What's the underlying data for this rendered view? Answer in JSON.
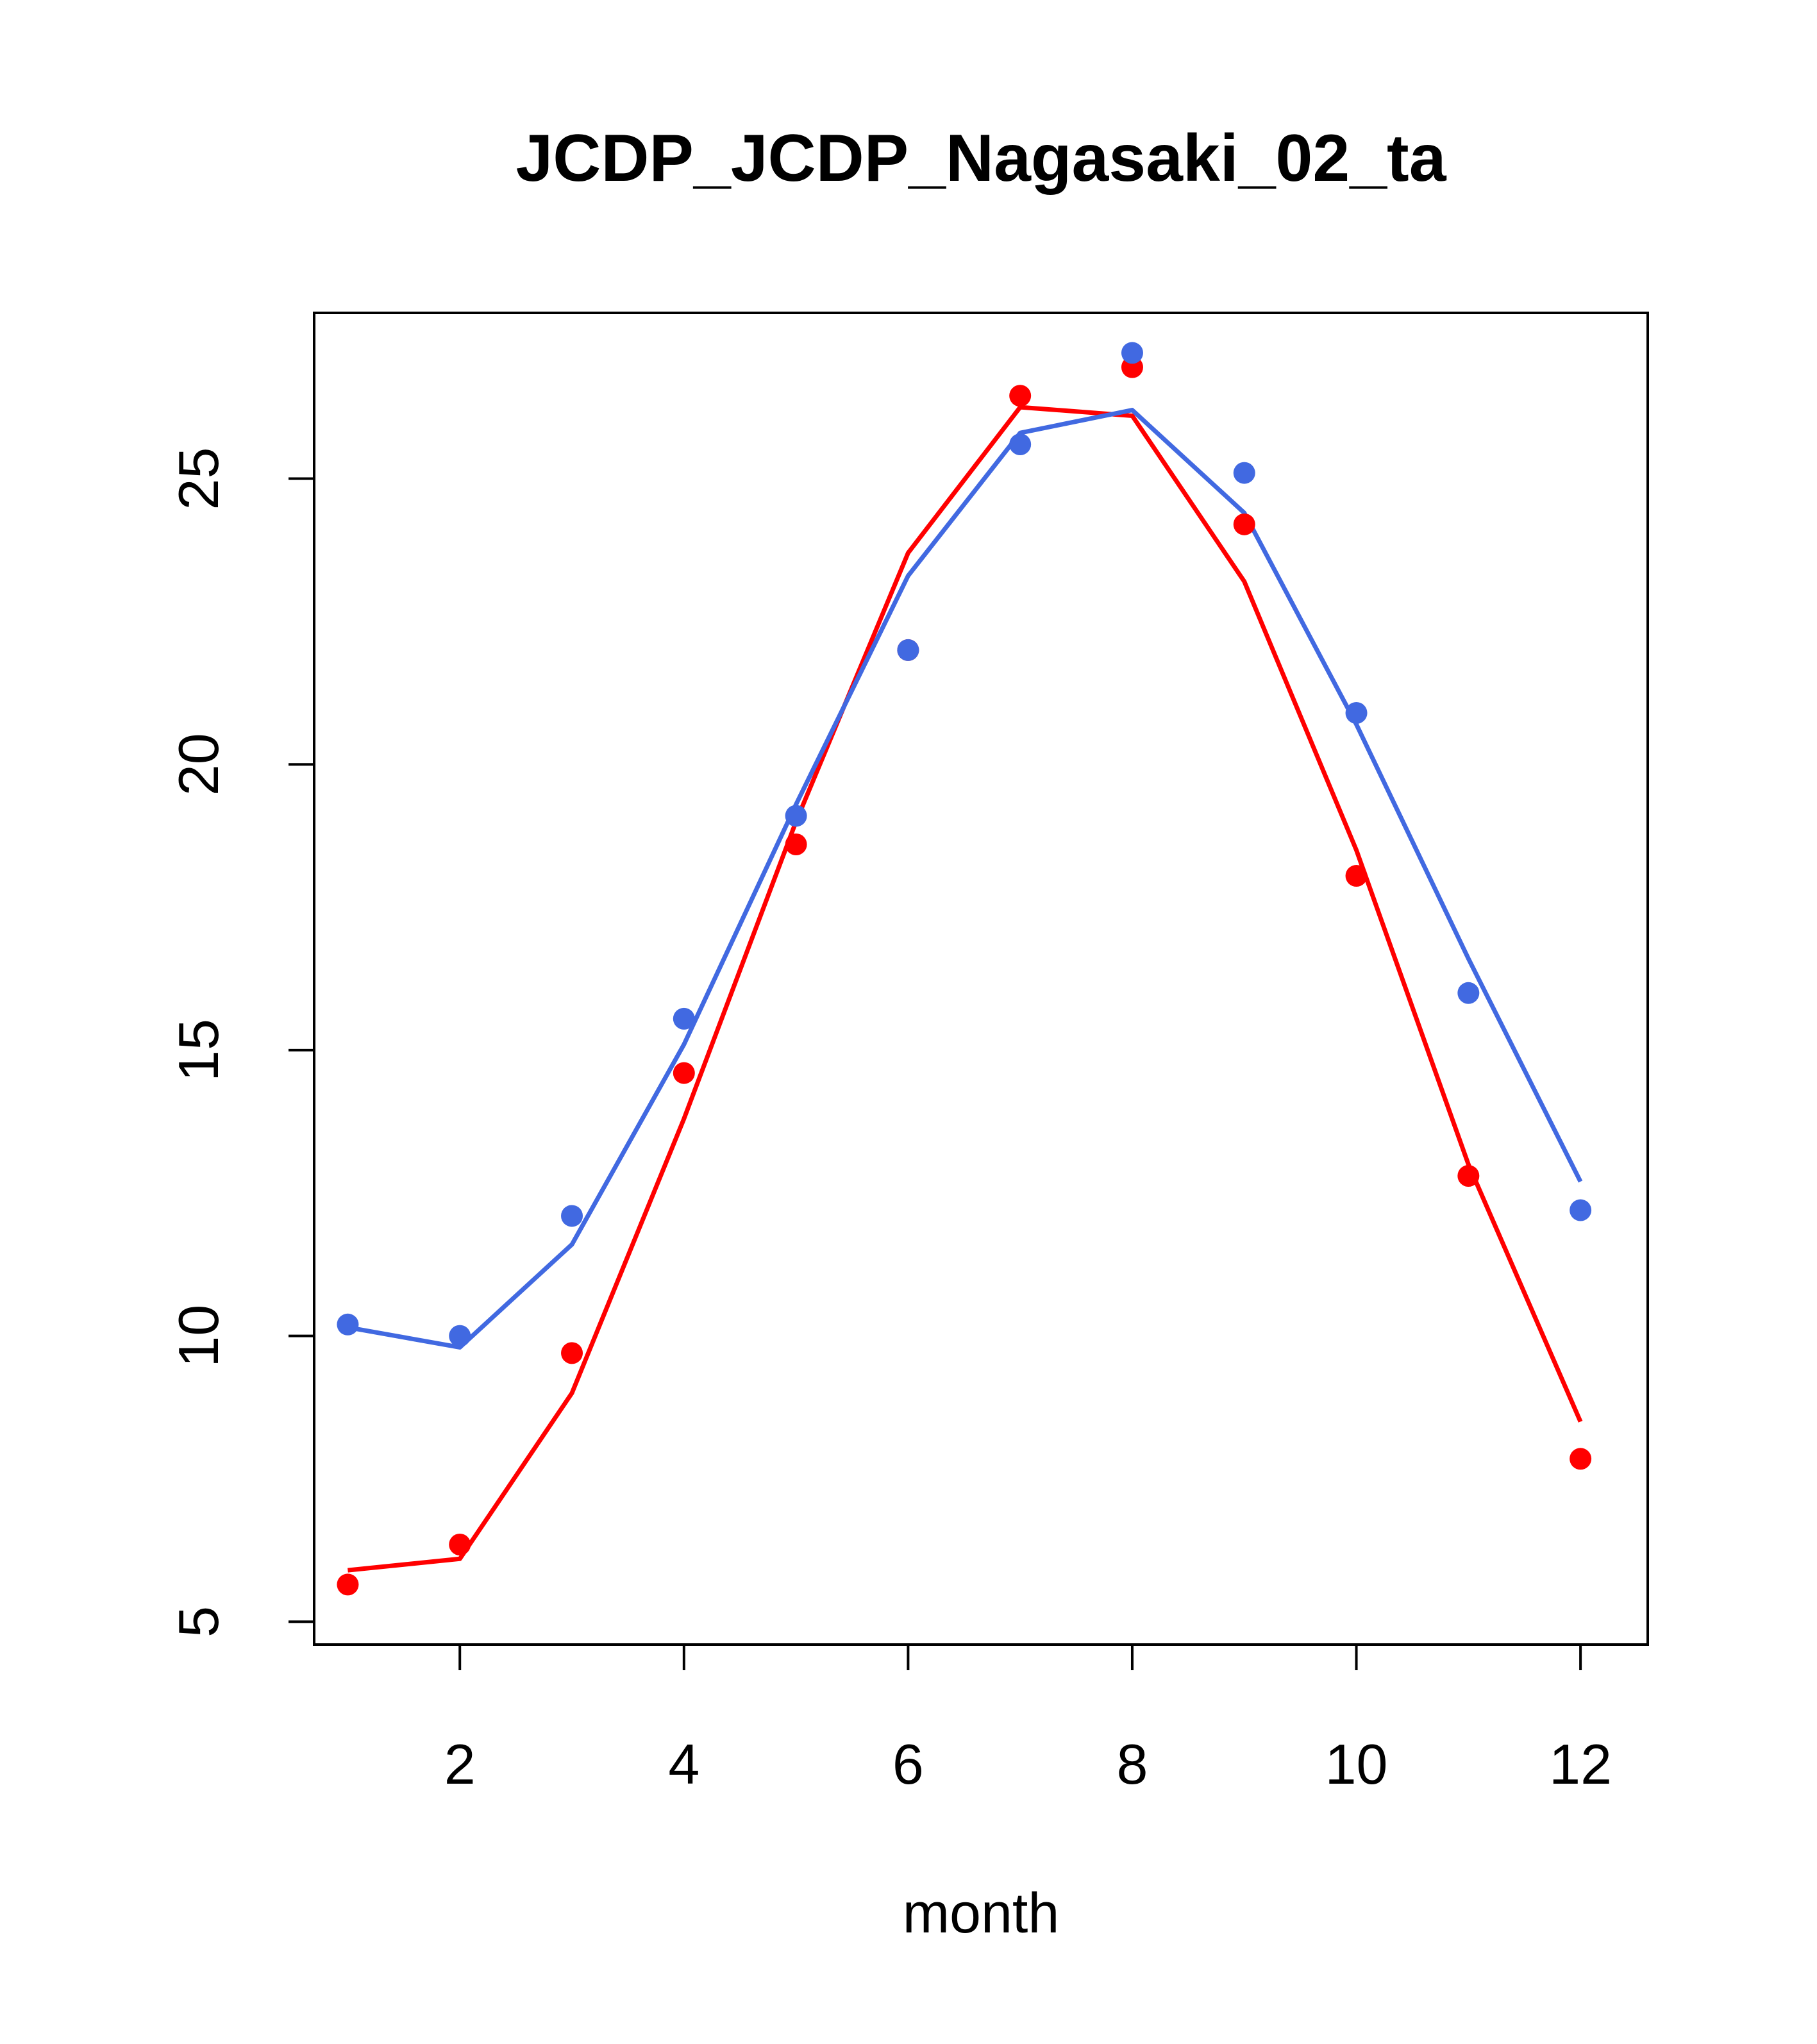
{
  "chart_data": {
    "type": "line",
    "title": "JCDP_JCDP_Nagasaki_02_ta",
    "xlabel": "month",
    "ylabel": "",
    "xlim": [
      0.7,
      12.6
    ],
    "ylim": [
      4.6,
      27.9
    ],
    "xticks": [
      2,
      4,
      6,
      8,
      10,
      12
    ],
    "yticks": [
      5,
      10,
      15,
      20,
      25
    ],
    "grid": false,
    "x": [
      1,
      2,
      3,
      4,
      5,
      6,
      7,
      8,
      9,
      10,
      11,
      12
    ],
    "series": [
      {
        "name": "red",
        "color": "#ff0000",
        "points": [
          5.65,
          6.35,
          9.7,
          14.6,
          18.6,
          22.0,
          26.45,
          26.95,
          24.2,
          18.05,
          12.8,
          7.85
        ],
        "line": [
          5.9,
          6.1,
          9.0,
          13.8,
          19.0,
          23.7,
          26.25,
          26.1,
          23.2,
          18.5,
          13.0,
          8.5
        ]
      },
      {
        "name": "blue",
        "color": "#4169e1",
        "points": [
          10.2,
          10.0,
          12.1,
          15.55,
          19.1,
          22.0,
          25.6,
          27.2,
          25.1,
          20.9,
          16.0,
          12.2
        ],
        "line": [
          10.15,
          9.8,
          11.6,
          15.1,
          19.3,
          23.3,
          25.8,
          26.2,
          24.4,
          20.7,
          16.6,
          12.7
        ]
      }
    ]
  }
}
